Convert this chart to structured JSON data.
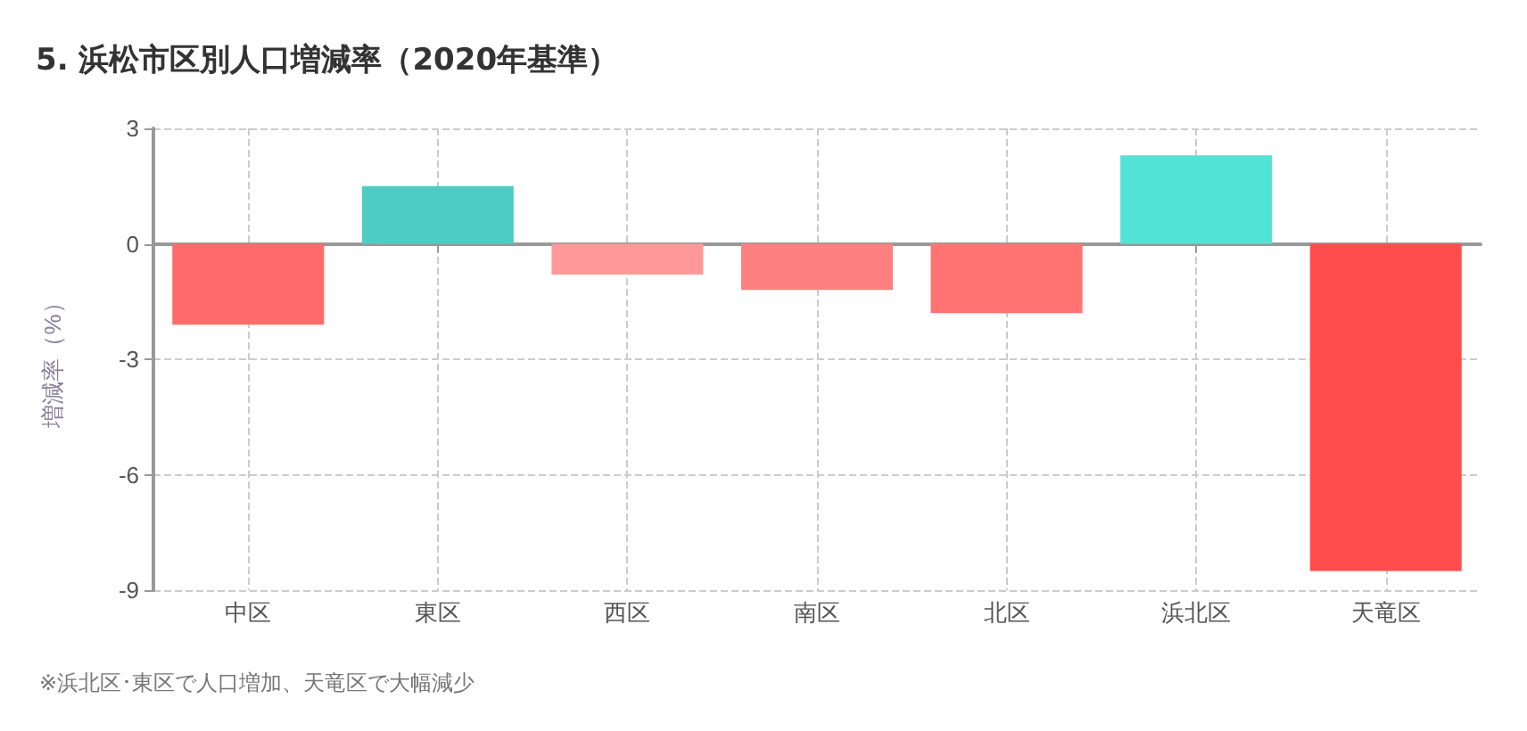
{
  "chart_data": {
    "type": "bar",
    "title": "5. 浜松市区別人口増減率（2020年基準）",
    "ylabel": "増減率（%）",
    "categories": [
      "中区",
      "東区",
      "西区",
      "南区",
      "北区",
      "浜北区",
      "天竜区"
    ],
    "values": [
      -2.1,
      1.5,
      -0.8,
      -1.2,
      -1.8,
      2.3,
      -8.5
    ],
    "colors": [
      "#ff6b6b",
      "#4ecdc4",
      "#ff9999",
      "#ff8080",
      "#ff7373",
      "#53e3d6",
      "#ff4d4d"
    ],
    "ylim": [
      -9,
      3
    ],
    "yticks": [
      -9,
      -6,
      -3,
      0,
      3
    ],
    "grid": true,
    "annotations": [
      "※浜北区･東区で人口増加、天竜区で大幅減少"
    ]
  }
}
